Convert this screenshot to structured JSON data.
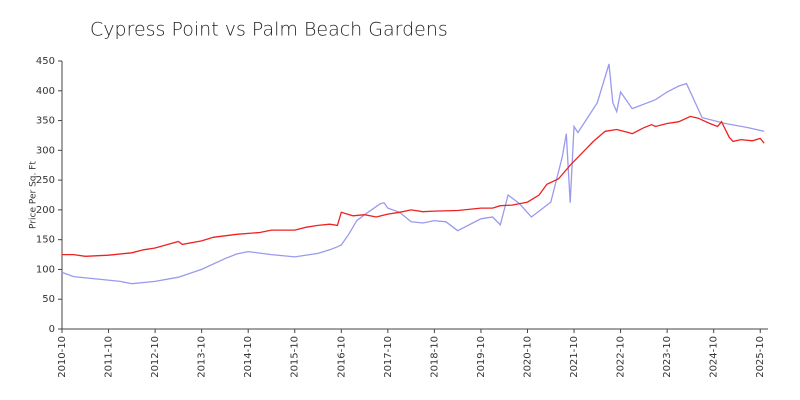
{
  "chart_data": {
    "type": "line",
    "title": "Cypress Point vs Palm Beach Gardens",
    "y_label": "Price Per Sq. Ft",
    "xlim": [
      "2010-10",
      "2025-12"
    ],
    "xticks": [
      "2010-10",
      "2011-10",
      "2012-10",
      "2013-10",
      "2014-10",
      "2015-10",
      "2016-10",
      "2017-10",
      "2018-10",
      "2019-10",
      "2020-10",
      "2021-10",
      "2022-10",
      "2023-10",
      "2024-10",
      "2025-10"
    ],
    "ylim": [
      0,
      450
    ],
    "yticks": [
      0,
      50,
      100,
      150,
      200,
      250,
      300,
      350,
      400,
      450
    ],
    "grid": false,
    "series": [
      {
        "color": "#9a9aee",
        "x": [
          "2010-10",
          "2011-01",
          "2011-07",
          "2012-01",
          "2012-04",
          "2012-10",
          "2013-04",
          "2013-10",
          "2014-04",
          "2014-07",
          "2014-10",
          "2015-04",
          "2015-10",
          "2016-04",
          "2016-07",
          "2016-09",
          "2016-10",
          "2016-12",
          "2017-02",
          "2017-04",
          "2017-08",
          "2017-09",
          "2017-10",
          "2018-01",
          "2018-04",
          "2018-07",
          "2018-10",
          "2019-01",
          "2019-04",
          "2019-10",
          "2020-01",
          "2020-03",
          "2020-05",
          "2020-08",
          "2020-11",
          "2021-04",
          "2021-07",
          "2021-08",
          "2021-09",
          "2021-10",
          "2021-11",
          "2022-01",
          "2022-04",
          "2022-07",
          "2022-08",
          "2022-09",
          "2022-10",
          "2023-01",
          "2023-07",
          "2023-10",
          "2024-01",
          "2024-03",
          "2024-07",
          "2025-01",
          "2025-07",
          "2025-11"
        ],
        "values": [
          95,
          88,
          84,
          80,
          76,
          80,
          87,
          100,
          118,
          126,
          130,
          125,
          121,
          127,
          133,
          138,
          141,
          160,
          182,
          192,
          210,
          212,
          203,
          196,
          180,
          178,
          182,
          180,
          165,
          185,
          188,
          175,
          225,
          210,
          188,
          213,
          290,
          328,
          212,
          340,
          330,
          350,
          380,
          445,
          380,
          365,
          398,
          370,
          385,
          398,
          408,
          412,
          355,
          345,
          338,
          332
        ]
      },
      {
        "color": "#ee2222",
        "x": [
          "2010-10",
          "2011-01",
          "2011-04",
          "2011-10",
          "2012-04",
          "2012-07",
          "2012-10",
          "2013-04",
          "2013-05",
          "2013-10",
          "2014-01",
          "2014-07",
          "2015-01",
          "2015-04",
          "2015-10",
          "2016-01",
          "2016-04",
          "2016-07",
          "2016-09",
          "2016-10",
          "2017-01",
          "2017-04",
          "2017-07",
          "2017-10",
          "2018-01",
          "2018-04",
          "2018-07",
          "2018-10",
          "2019-04",
          "2019-10",
          "2020-01",
          "2020-03",
          "2020-06",
          "2020-10",
          "2021-01",
          "2021-03",
          "2021-06",
          "2021-09",
          "2021-12",
          "2022-03",
          "2022-06",
          "2022-09",
          "2022-12",
          "2023-01",
          "2023-04",
          "2023-06",
          "2023-07",
          "2023-10",
          "2024-01",
          "2024-04",
          "2024-06",
          "2024-09",
          "2024-11",
          "2024-12",
          "2025-02",
          "2025-03",
          "2025-05",
          "2025-08",
          "2025-10",
          "2025-11"
        ],
        "values": [
          125,
          125,
          122,
          124,
          128,
          133,
          136,
          147,
          142,
          148,
          154,
          159,
          162,
          166,
          166,
          171,
          174,
          176,
          174,
          196,
          190,
          192,
          188,
          193,
          196,
          200,
          197,
          198,
          199,
          203,
          203,
          207,
          208,
          213,
          225,
          243,
          252,
          275,
          295,
          315,
          332,
          335,
          330,
          328,
          338,
          343,
          340,
          345,
          348,
          357,
          354,
          345,
          340,
          348,
          322,
          315,
          318,
          316,
          320,
          312
        ]
      }
    ]
  }
}
